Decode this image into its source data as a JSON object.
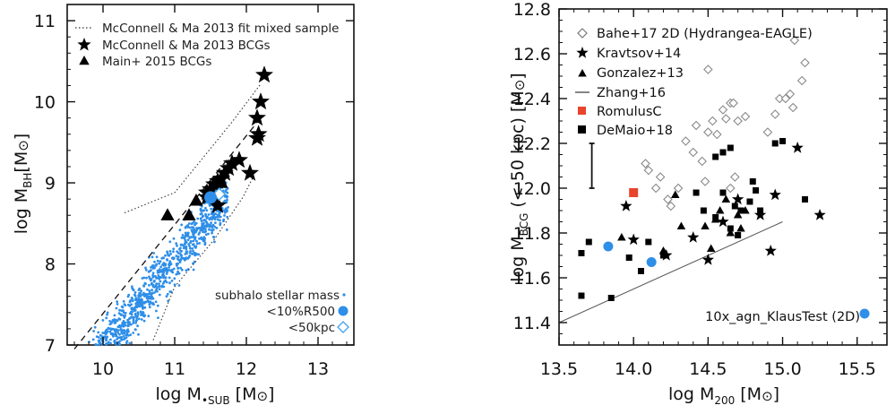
{
  "colors": {
    "blue": "#2e8ee8",
    "light_blue": "#4aa6ee",
    "red": "#e8442c",
    "black": "#000000",
    "gray": "#888888"
  },
  "chart_data": [
    {
      "type": "scatter",
      "xlabel_main": "log M",
      "xlabel_sub": "•SUB",
      "xlabel_unit": "[M",
      "xlabel_close": "]",
      "ylabel_main": "log M",
      "ylabel_sub": "BH",
      "ylabel_unit": "[M",
      "ylabel_close": "]",
      "xlim": [
        9.5,
        13.5
      ],
      "ylim": [
        7.0,
        11.2
      ],
      "xticks": [
        "10",
        "11",
        "12",
        "13"
      ],
      "xtick_values": [
        10,
        11,
        12,
        13
      ],
      "yticks": [
        "7",
        "8",
        "9",
        "10",
        "11"
      ],
      "ytick_values": [
        7,
        8,
        9,
        10,
        11
      ],
      "legend": [
        {
          "label": "McConnell & Ma 2013 fit mixed sample",
          "marker": "dotted-line"
        },
        {
          "label": "McConnell & Ma 2013 BCGs",
          "marker": "star"
        },
        {
          "label": "Main+ 2015 BCGs",
          "marker": "triangle"
        }
      ],
      "legend_bottom": [
        {
          "label": "subhalo stellar mass",
          "marker": "dot"
        },
        {
          "label": "<10%R500",
          "marker": "filled-circle"
        },
        {
          "label": "<50kpc",
          "marker": "open-diamond"
        }
      ],
      "fit_line": {
        "x": [
          9.6,
          12.2
        ],
        "y": [
          6.95,
          9.8
        ]
      },
      "scatter_band": {
        "upper": [
          [
            10.3,
            8.63
          ],
          [
            11.0,
            8.88
          ],
          [
            11.8,
            9.75
          ],
          [
            12.2,
            10.22
          ]
        ],
        "lower": [
          [
            10.7,
            7.06
          ],
          [
            11.0,
            7.72
          ],
          [
            11.55,
            8.3
          ],
          [
            11.95,
            8.82
          ],
          [
            12.1,
            9.08
          ]
        ]
      },
      "stars": [
        [
          12.25,
          10.33
        ],
        [
          12.2,
          10.0
        ],
        [
          12.15,
          9.8
        ],
        [
          12.17,
          9.6
        ],
        [
          12.15,
          9.55
        ],
        [
          12.05,
          9.12
        ],
        [
          11.9,
          9.28
        ],
        [
          11.8,
          9.24
        ],
        [
          11.75,
          9.18
        ],
        [
          11.7,
          9.12
        ],
        [
          11.65,
          9.05
        ],
        [
          11.6,
          9.02
        ],
        [
          11.55,
          8.98
        ],
        [
          11.5,
          8.92
        ],
        [
          11.45,
          8.88
        ],
        [
          11.45,
          8.82
        ],
        [
          11.6,
          8.72
        ]
      ],
      "triangles": [
        [
          10.9,
          8.6
        ],
        [
          11.2,
          8.6
        ],
        [
          11.3,
          8.78
        ],
        [
          11.55,
          8.82
        ],
        [
          11.65,
          9.0
        ]
      ],
      "filled_circle": [
        11.5,
        8.82
      ],
      "open_diamond": [
        11.62,
        8.86
      ],
      "subhalo_cloud": {
        "center_x": 10.6,
        "center_y": 7.6,
        "slope": 1.1,
        "x_min": 9.5,
        "x_max": 11.75,
        "sigma_y": 0.22,
        "count": 1300
      }
    },
    {
      "type": "scatter",
      "xlabel_main": "log M",
      "xlabel_sub": "200",
      "xlabel_unit": "[M",
      "xlabel_close": "]",
      "ylabel_main": "log M",
      "ylabel_sub": "BCG",
      "ylabel_unit": "(< 50 kpc) [M",
      "ylabel_close": "]",
      "xlim": [
        13.5,
        15.7
      ],
      "ylim": [
        11.3,
        12.8
      ],
      "xticks": [
        "13.5",
        "14.0",
        "14.5",
        "15.0",
        "15.5"
      ],
      "xtick_values": [
        13.5,
        14.0,
        14.5,
        15.0,
        15.5
      ],
      "yticks": [
        "11.4",
        "11.6",
        "11.8",
        "12.0",
        "12.2",
        "12.4",
        "12.6",
        "12.8"
      ],
      "ytick_values": [
        11.4,
        11.6,
        11.8,
        12.0,
        12.2,
        12.4,
        12.6,
        12.8
      ],
      "legend": [
        {
          "label": "Bahe+17 2D (Hydrangea-EAGLE)",
          "marker": "open-diamond"
        },
        {
          "label": "Kravtsov+14",
          "marker": "star"
        },
        {
          "label": "Gonzalez+13",
          "marker": "triangle"
        },
        {
          "label": "Zhang+16",
          "marker": "line"
        },
        {
          "label": "RomulusC",
          "marker": "red-square"
        },
        {
          "label": "DeMaio+18",
          "marker": "square"
        }
      ],
      "legend_bottom": {
        "label": "10x_agn_KlausTest (2D)",
        "marker": "filled-circle"
      },
      "error_bar": {
        "x": 13.72,
        "y_low": 12.0,
        "y_high": 12.2
      },
      "zhang_line": {
        "x": [
          13.5,
          15.0
        ],
        "y": [
          11.4,
          11.85
        ]
      },
      "diamonds": [
        [
          14.08,
          12.11
        ],
        [
          14.1,
          12.08
        ],
        [
          14.15,
          12.0
        ],
        [
          14.18,
          12.05
        ],
        [
          14.23,
          11.95
        ],
        [
          14.25,
          11.92
        ],
        [
          14.3,
          12.0
        ],
        [
          14.35,
          12.21
        ],
        [
          14.4,
          12.16
        ],
        [
          14.42,
          12.28
        ],
        [
          14.46,
          12.12
        ],
        [
          14.5,
          12.53
        ],
        [
          14.5,
          12.25
        ],
        [
          14.53,
          12.3
        ],
        [
          14.56,
          12.24
        ],
        [
          14.6,
          12.35
        ],
        [
          14.62,
          12.31
        ],
        [
          14.65,
          12.38
        ],
        [
          14.67,
          12.38
        ],
        [
          14.7,
          12.3
        ],
        [
          14.68,
          12.05
        ],
        [
          14.75,
          12.32
        ],
        [
          14.48,
          12.03
        ],
        [
          14.9,
          12.25
        ],
        [
          14.95,
          12.33
        ],
        [
          14.98,
          12.4
        ],
        [
          15.02,
          12.4
        ],
        [
          15.05,
          12.42
        ],
        [
          15.07,
          12.36
        ],
        [
          15.13,
          12.48
        ],
        [
          15.15,
          12.56
        ],
        [
          15.08,
          12.66
        ],
        [
          14.65,
          12.0
        ]
      ],
      "stars": [
        [
          13.95,
          11.92
        ],
        [
          14.0,
          11.77
        ],
        [
          14.22,
          11.7
        ],
        [
          14.4,
          11.78
        ],
        [
          14.5,
          11.68
        ],
        [
          14.6,
          11.85
        ],
        [
          14.7,
          11.95
        ],
        [
          14.85,
          11.88
        ],
        [
          14.92,
          11.72
        ],
        [
          14.95,
          11.97
        ],
        [
          15.1,
          12.18
        ],
        [
          15.25,
          11.88
        ]
      ],
      "triangles": [
        [
          13.92,
          11.78
        ],
        [
          14.2,
          11.72
        ],
        [
          14.28,
          11.97
        ],
        [
          14.32,
          11.83
        ],
        [
          14.48,
          11.83
        ],
        [
          14.52,
          11.73
        ],
        [
          14.55,
          11.86
        ],
        [
          14.58,
          11.9
        ],
        [
          14.62,
          11.95
        ],
        [
          14.65,
          11.8
        ],
        [
          14.7,
          11.88
        ],
        [
          14.72,
          11.82
        ],
        [
          14.75,
          11.9
        ]
      ],
      "squares": [
        [
          13.65,
          11.52
        ],
        [
          13.65,
          11.71
        ],
        [
          13.7,
          11.76
        ],
        [
          13.85,
          11.51
        ],
        [
          13.97,
          11.69
        ],
        [
          14.05,
          11.63
        ],
        [
          14.1,
          11.76
        ],
        [
          14.2,
          11.7
        ],
        [
          14.47,
          11.9
        ],
        [
          14.55,
          11.87
        ],
        [
          14.6,
          11.98
        ],
        [
          14.65,
          11.82
        ],
        [
          14.7,
          11.79
        ],
        [
          14.72,
          11.9
        ],
        [
          14.78,
          11.94
        ],
        [
          14.8,
          12.03
        ],
        [
          14.82,
          11.99
        ],
        [
          14.85,
          11.9
        ],
        [
          14.55,
          12.14
        ],
        [
          14.6,
          12.16
        ],
        [
          14.65,
          12.18
        ],
        [
          14.95,
          12.2
        ],
        [
          15.0,
          12.21
        ],
        [
          15.15,
          11.95
        ],
        [
          14.42,
          11.98
        ],
        [
          14.68,
          11.92
        ]
      ],
      "romulusc": [
        14.0,
        11.98
      ],
      "klaus_circles": [
        [
          13.83,
          11.74
        ],
        [
          14.12,
          11.67
        ],
        [
          15.55,
          11.44
        ]
      ]
    }
  ]
}
